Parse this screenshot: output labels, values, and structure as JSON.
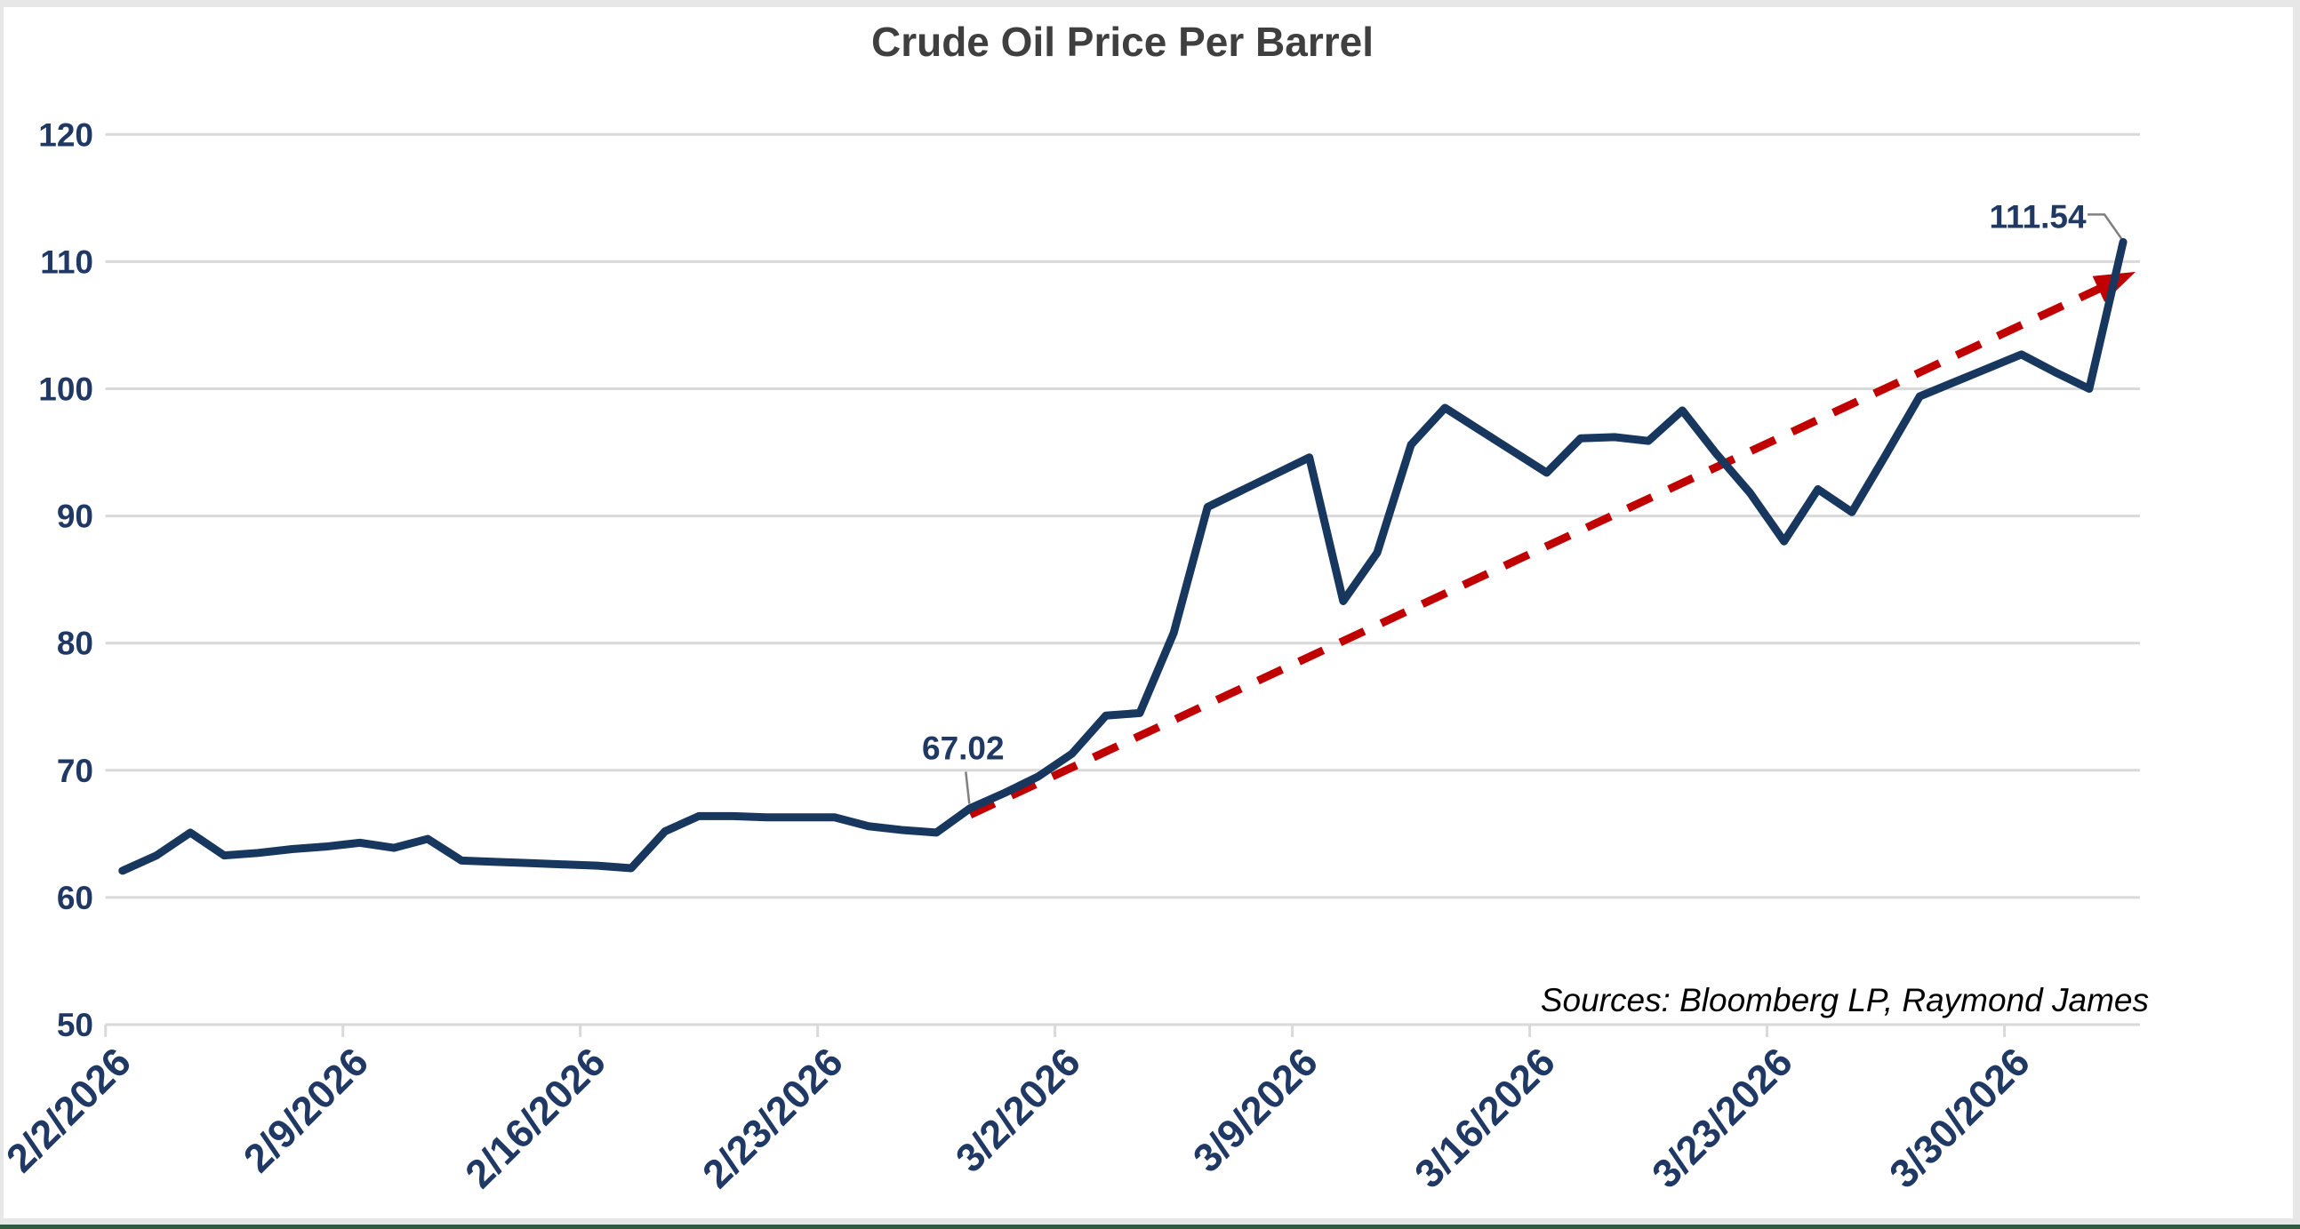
{
  "chart": {
    "title": "Crude Oil Price Per Barrel",
    "source_note": "Sources: Bloomberg LP, Raymond James"
  },
  "colors": {
    "line": "#17375e",
    "trend": "#c00000",
    "gridline": "#d9d9d9",
    "axis_label": "#1f3864",
    "title": "#3f3f3f",
    "callout": "#808080",
    "frame_gray": "#e7e7e7",
    "frame_green": "#2f5d3f"
  },
  "chart_data": {
    "type": "line",
    "title": "Crude Oil Price Per Barrel",
    "xlabel": "",
    "ylabel": "",
    "ylim": [
      50,
      120
    ],
    "y_ticks": [
      50,
      60,
      70,
      80,
      90,
      100,
      110,
      120
    ],
    "grid": "horizontal",
    "legend_position": "none",
    "x_tick_labels": [
      "2/2/2026",
      "2/9/2026",
      "2/16/2026",
      "2/23/2026",
      "3/2/2026",
      "3/9/2026",
      "3/16/2026",
      "3/23/2026",
      "3/30/2026"
    ],
    "series": [
      {
        "name": "Crude Oil Price Per Barrel",
        "color": "#17375e",
        "points": [
          {
            "date": "2/2/2026",
            "value": 62.1
          },
          {
            "date": "2/3/2026",
            "value": 63.3
          },
          {
            "date": "2/4/2026",
            "value": 65.1
          },
          {
            "date": "2/5/2026",
            "value": 63.3
          },
          {
            "date": "2/6/2026",
            "value": 63.5
          },
          {
            "date": "2/7/2026",
            "value": 63.8
          },
          {
            "date": "2/8/2026",
            "value": 64.0
          },
          {
            "date": "2/9/2026",
            "value": 64.3
          },
          {
            "date": "2/10/2026",
            "value": 63.9
          },
          {
            "date": "2/11/2026",
            "value": 64.6
          },
          {
            "date": "2/12/2026",
            "value": 62.9
          },
          {
            "date": "2/13/2026",
            "value": 62.8
          },
          {
            "date": "2/14/2026",
            "value": 62.7
          },
          {
            "date": "2/15/2026",
            "value": 62.6
          },
          {
            "date": "2/16/2026",
            "value": 62.5
          },
          {
            "date": "2/17/2026",
            "value": 62.3
          },
          {
            "date": "2/18/2026",
            "value": 65.2
          },
          {
            "date": "2/19/2026",
            "value": 66.4
          },
          {
            "date": "2/20/2026",
            "value": 66.4
          },
          {
            "date": "2/21/2026",
            "value": 66.3
          },
          {
            "date": "2/22/2026",
            "value": 66.3
          },
          {
            "date": "2/23/2026",
            "value": 66.3
          },
          {
            "date": "2/24/2026",
            "value": 65.6
          },
          {
            "date": "2/25/2026",
            "value": 65.3
          },
          {
            "date": "2/26/2026",
            "value": 65.1
          },
          {
            "date": "2/27/2026",
            "value": 67.02
          },
          {
            "date": "2/28/2026",
            "value": 68.2
          },
          {
            "date": "3/1/2026",
            "value": 69.5
          },
          {
            "date": "3/2/2026",
            "value": 71.3
          },
          {
            "date": "3/3/2026",
            "value": 74.3
          },
          {
            "date": "3/4/2026",
            "value": 74.5
          },
          {
            "date": "3/5/2026",
            "value": 80.8
          },
          {
            "date": "3/6/2026",
            "value": 90.7
          },
          {
            "date": "3/7/2026",
            "value": 92.0
          },
          {
            "date": "3/8/2026",
            "value": 93.3
          },
          {
            "date": "3/9/2026",
            "value": 94.6
          },
          {
            "date": "3/10/2026",
            "value": 83.3
          },
          {
            "date": "3/11/2026",
            "value": 87.1
          },
          {
            "date": "3/12/2026",
            "value": 95.6
          },
          {
            "date": "3/13/2026",
            "value": 98.5
          },
          {
            "date": "3/14/2026",
            "value": 96.8
          },
          {
            "date": "3/15/2026",
            "value": 95.1
          },
          {
            "date": "3/16/2026",
            "value": 93.4
          },
          {
            "date": "3/17/2026",
            "value": 96.1
          },
          {
            "date": "3/18/2026",
            "value": 96.2
          },
          {
            "date": "3/19/2026",
            "value": 95.9
          },
          {
            "date": "3/20/2026",
            "value": 98.3
          },
          {
            "date": "3/21/2026",
            "value": 94.9
          },
          {
            "date": "3/22/2026",
            "value": 91.8
          },
          {
            "date": "3/23/2026",
            "value": 88.0
          },
          {
            "date": "3/24/2026",
            "value": 92.1
          },
          {
            "date": "3/25/2026",
            "value": 90.3
          },
          {
            "date": "3/26/2026",
            "value": 94.8
          },
          {
            "date": "3/27/2026",
            "value": 99.4
          },
          {
            "date": "3/28/2026",
            "value": 100.5
          },
          {
            "date": "3/29/2026",
            "value": 101.6
          },
          {
            "date": "3/30/2026",
            "value": 102.7
          },
          {
            "date": "3/31/2026",
            "value": 101.3
          },
          {
            "date": "4/1/2026",
            "value": 100.0
          },
          {
            "date": "4/2/2026",
            "value": 111.54
          }
        ]
      }
    ],
    "trendline": {
      "style": "dashed",
      "color": "#c00000",
      "arrow": true,
      "from": {
        "date": "2/27/2026",
        "value": 66.5
      },
      "to": {
        "date": "4/2/2026",
        "value": 109.2
      }
    },
    "annotations": [
      {
        "text": "67.02",
        "date": "2/27/2026",
        "value": 67.02
      },
      {
        "text": "111.54",
        "date": "4/2/2026",
        "value": 111.54
      }
    ]
  }
}
